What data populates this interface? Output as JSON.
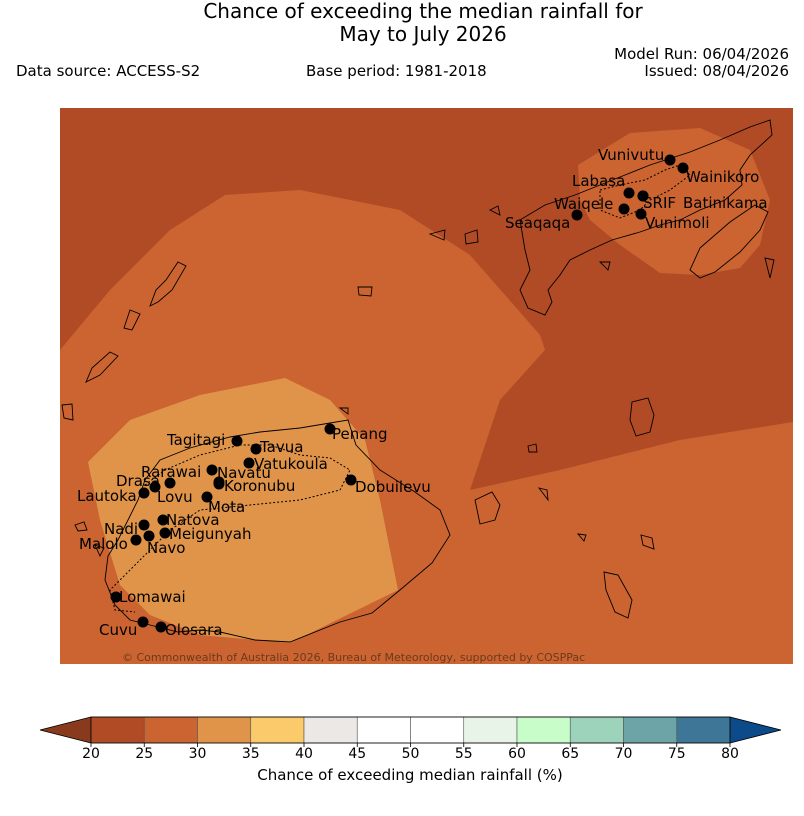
{
  "title": {
    "line1": "Chance of exceeding the median rainfall for",
    "line2": "May to July 2026"
  },
  "model_run": "Model Run: 06/04/2026",
  "issued": "Issued: 08/04/2026",
  "data_source": "Data source: ACCESS-S2",
  "base_period": "Base period: 1981-2018",
  "copyright": "© Commonwealth of Australia 2026, Bureau of Meteorology, supported by COSPPac",
  "colors": {
    "c20_25": "#b14b26",
    "c25_30": "#cb6431",
    "c30_35": "#e0944a",
    "c35_40": "#fbcb6b",
    "c40_45": "#ece8e5",
    "c45_50": "#ffffff",
    "c50_55": "#ffffff",
    "c55_60": "#e9f4e9",
    "c60_65": "#c8fcc9",
    "c65_70": "#9dd2bb",
    "c70_75": "#6ca4a8",
    "c75_80": "#3d7696",
    "below_20": "#8a3a1c",
    "above_80": "#0d4a8a"
  },
  "locations": [
    {
      "name": "Vunivutu"
    },
    {
      "name": "Wainikoro"
    },
    {
      "name": "Labasa"
    },
    {
      "name": "SRIF"
    },
    {
      "name": "Batinikama"
    },
    {
      "name": "Waiqele"
    },
    {
      "name": "Seaqaqa"
    },
    {
      "name": "Vunimoli"
    },
    {
      "name": "Penang"
    },
    {
      "name": "Tagitagi"
    },
    {
      "name": "Tavua"
    },
    {
      "name": "Vatukoula"
    },
    {
      "name": "Rarawai"
    },
    {
      "name": "Navatu"
    },
    {
      "name": "Drasa"
    },
    {
      "name": "Koronubu"
    },
    {
      "name": "Lautoka"
    },
    {
      "name": "Lovu"
    },
    {
      "name": "Mota"
    },
    {
      "name": "Dobuilevu"
    },
    {
      "name": "Natova"
    },
    {
      "name": "Nadi"
    },
    {
      "name": "Meigunyah"
    },
    {
      "name": "Malolo"
    },
    {
      "name": "Navo"
    },
    {
      "name": "Lomawai"
    },
    {
      "name": "Cuvu"
    },
    {
      "name": "Olosara"
    }
  ],
  "colorbar": {
    "ticks": [
      "20",
      "25",
      "30",
      "35",
      "40",
      "45",
      "50",
      "55",
      "60",
      "65",
      "70",
      "75",
      "80"
    ],
    "label": "Chance of exceeding median rainfall (%)"
  }
}
